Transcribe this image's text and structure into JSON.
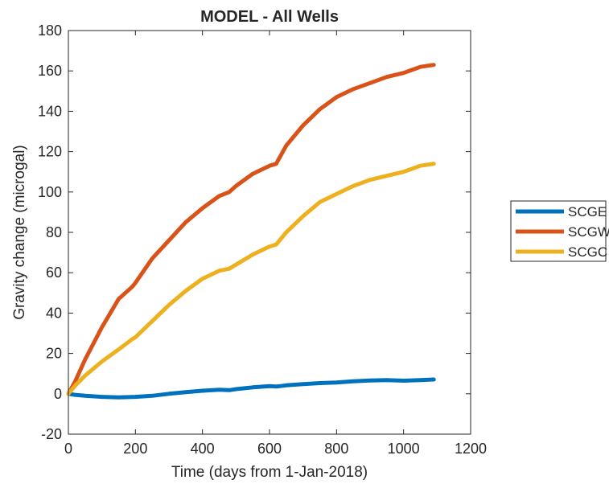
{
  "chart_data": {
    "type": "line",
    "title": "MODEL - All Wells",
    "xlabel": "Time (days from  1-Jan-2018)",
    "ylabel": "Gravity change (microgal)",
    "xlim": [
      0,
      1200
    ],
    "ylim": [
      -20,
      180
    ],
    "xticks": [
      0,
      200,
      400,
      600,
      800,
      1000,
      1200
    ],
    "yticks": [
      -20,
      0,
      20,
      40,
      60,
      80,
      100,
      120,
      140,
      160,
      180
    ],
    "grid": false,
    "legend_position": "outside-right",
    "series": [
      {
        "name": "SCGE",
        "color": "#0072BD",
        "x": [
          0,
          20,
          50,
          100,
          150,
          200,
          250,
          300,
          350,
          400,
          450,
          480,
          500,
          550,
          600,
          620,
          650,
          700,
          750,
          800,
          850,
          900,
          950,
          1000,
          1050,
          1090
        ],
        "y": [
          0,
          -0.5,
          -1,
          -1.5,
          -1.8,
          -1.5,
          -1,
          0,
          0.8,
          1.5,
          2,
          1.8,
          2.3,
          3.2,
          3.8,
          3.6,
          4.2,
          4.8,
          5.3,
          5.6,
          6.2,
          6.6,
          6.8,
          6.5,
          6.8,
          7.1
        ]
      },
      {
        "name": "SCGW",
        "color": "#D95319",
        "x": [
          0,
          20,
          50,
          100,
          150,
          190,
          200,
          250,
          300,
          350,
          400,
          450,
          480,
          500,
          550,
          600,
          620,
          650,
          700,
          750,
          800,
          850,
          900,
          950,
          1000,
          1050,
          1090
        ],
        "y": [
          0,
          6,
          17,
          33,
          47,
          53,
          55,
          67,
          76,
          85,
          92,
          98,
          100,
          103,
          109,
          113,
          114,
          123,
          133,
          141,
          147,
          151,
          154,
          157,
          159,
          162,
          163
        ]
      },
      {
        "name": "SCGC",
        "color": "#EDB120",
        "x": [
          0,
          20,
          50,
          100,
          150,
          190,
          200,
          250,
          300,
          350,
          400,
          450,
          480,
          500,
          550,
          600,
          620,
          650,
          700,
          750,
          800,
          850,
          900,
          950,
          1000,
          1050,
          1090
        ],
        "y": [
          0,
          4,
          9,
          16,
          22,
          27,
          28,
          36,
          44,
          51,
          57,
          61,
          62,
          64,
          69,
          73,
          74,
          80,
          88,
          95,
          99,
          103,
          106,
          108,
          110,
          113,
          114
        ]
      }
    ]
  }
}
